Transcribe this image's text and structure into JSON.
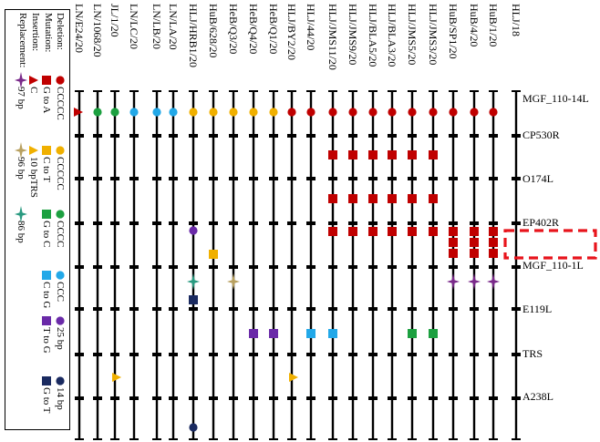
{
  "legend": {
    "titles": [
      "Deletion:",
      "Mutation:",
      "Insertion:",
      "Replacement:"
    ],
    "groups": [
      {
        "deletion": {
          "label": "CCCCC",
          "color": "#c00000"
        },
        "mutation": {
          "label": "G to A",
          "color": "#c00000"
        },
        "insertion": {
          "label": "C",
          "color": "#c00000"
        },
        "replacement": {
          "label": "97 bp",
          "color": "#7a2a8a"
        }
      },
      {
        "deletion": {
          "label": "CCCCC",
          "color": "#f0b000"
        },
        "mutation": {
          "label": "C to T",
          "color": "#f0b000"
        },
        "insertion": {
          "label": "10 bpTRS",
          "color": "#f0b000"
        },
        "replacement": {
          "label": "96 bp",
          "color": "#b8a060"
        }
      },
      {
        "deletion": {
          "label": "CCCC",
          "color": "#1ca040"
        },
        "mutation": {
          "label": "G to C",
          "color": "#1ca040"
        },
        "replacement": {
          "label": "86 bp",
          "color": "#2a9a80"
        }
      },
      {
        "deletion": {
          "label": "CCC",
          "color": "#22a8e8"
        },
        "mutation": {
          "label": "C to G",
          "color": "#22a8e8"
        }
      },
      {
        "deletion": {
          "label": "25 bp",
          "color": "#6a2aa8"
        },
        "mutation": {
          "label": "T to G",
          "color": "#6a2aa8"
        }
      },
      {
        "deletion": {
          "label": "14 bp",
          "color": "#1a2a60"
        },
        "mutation": {
          "label": "G to T",
          "color": "#1a2a60"
        }
      }
    ]
  },
  "strains": [
    "LN/E24/20",
    "LN/1068/20",
    "JL/1/20",
    "LN/LC/20",
    "LN/LB/20",
    "LN/LA/20",
    "HLJ/HRB1/20",
    "HuB/628/20",
    "HeB/Q3/20",
    "HeB/Q4/20",
    "HeB/Q1/20",
    "HLJ/BY2/20",
    "HLJ/44/20",
    "HLJ/JMS11/20",
    "HLJ/JMS9/20",
    "HLJ/BLA5/20",
    "HLJ/BLA3/20",
    "HLJ/JMS5/20",
    "HLJ/JMS3/20",
    "HuB/SP1/20",
    "HuB/4/20",
    "HuB/1/20",
    "HLJ/18"
  ],
  "segments": [
    "MGF_110-14L",
    "CP530R",
    "O174L",
    "EP402R",
    "MGF_110-1L",
    "E119L",
    "TRS",
    "A238L"
  ],
  "highlight": {
    "segment": "EP402R",
    "color": "#e8141c"
  },
  "variations": [
    {
      "strain": "LN/E24/20",
      "segment": "MGF_110-14L",
      "type": "insertion-C"
    },
    {
      "strain": "LN/1068/20",
      "segment": "MGF_110-14L",
      "type": "deletion-CCCC"
    },
    {
      "strain": "JL/1/20",
      "segment": "MGF_110-14L",
      "type": "deletion-CCCC"
    },
    {
      "strain": "LN/LC/20",
      "segment": "MGF_110-14L",
      "type": "deletion-CCC"
    },
    {
      "strain": "LN/LB/20",
      "segment": "MGF_110-14L",
      "type": "deletion-CCC"
    },
    {
      "strain": "LN/LA/20",
      "segment": "MGF_110-14L",
      "type": "deletion-CCC"
    },
    {
      "strain": "HLJ/HRB1/20",
      "segment": "MGF_110-14L",
      "type": "deletion-CCCCC-yellow"
    },
    {
      "strain": "HuB/628/20",
      "segment": "MGF_110-14L",
      "type": "deletion-CCCCC-yellow"
    },
    {
      "strain": "HeB/Q3/20",
      "segment": "MGF_110-14L",
      "type": "deletion-CCCCC-yellow"
    },
    {
      "strain": "HeB/Q4/20",
      "segment": "MGF_110-14L",
      "type": "deletion-CCCCC-yellow"
    },
    {
      "strain": "HeB/Q1/20",
      "segment": "MGF_110-14L",
      "type": "deletion-CCCCC-yellow"
    },
    {
      "strain": "HLJ/BY2/20",
      "segment": "MGF_110-14L",
      "type": "deletion-CCCCC-red"
    },
    {
      "strain": "HLJ/44/20",
      "segment": "MGF_110-14L",
      "type": "deletion-CCCCC-red"
    },
    {
      "strain": "HLJ/JMS11/20",
      "segment": "MGF_110-14L",
      "type": "deletion-CCCCC-red"
    },
    {
      "strain": "HLJ/JMS9/20",
      "segment": "MGF_110-14L",
      "type": "deletion-CCCCC-red"
    },
    {
      "strain": "HLJ/BLA5/20",
      "segment": "MGF_110-14L",
      "type": "deletion-CCCCC-red"
    },
    {
      "strain": "HLJ/BLA3/20",
      "segment": "MGF_110-14L",
      "type": "deletion-CCCCC-red"
    },
    {
      "strain": "HLJ/JMS5/20",
      "segment": "MGF_110-14L",
      "type": "deletion-CCCCC-red"
    },
    {
      "strain": "HLJ/JMS3/20",
      "segment": "MGF_110-14L",
      "type": "deletion-CCCCC-red"
    },
    {
      "strain": "HuB/SP1/20",
      "segment": "MGF_110-14L",
      "type": "deletion-CCCCC-red"
    },
    {
      "strain": "HuB/4/20",
      "segment": "MGF_110-14L",
      "type": "deletion-CCCCC-red"
    },
    {
      "strain": "HuB/1/20",
      "segment": "MGF_110-14L",
      "type": "deletion-CCCCC-red"
    },
    {
      "strain": "HLJ/JMS11/20",
      "segment": "CP530R",
      "type": "mutation-G-to-A"
    },
    {
      "strain": "HLJ/JMS9/20",
      "segment": "CP530R",
      "type": "mutation-G-to-A"
    },
    {
      "strain": "HLJ/BLA5/20",
      "segment": "CP530R",
      "type": "mutation-G-to-A"
    },
    {
      "strain": "HLJ/BLA3/20",
      "segment": "CP530R",
      "type": "mutation-G-to-A"
    },
    {
      "strain": "HLJ/JMS5/20",
      "segment": "CP530R",
      "type": "mutation-G-to-A"
    },
    {
      "strain": "HLJ/JMS3/20",
      "segment": "CP530R",
      "type": "mutation-G-to-A"
    },
    {
      "strain": "HLJ/JMS11/20",
      "segment": "O174L",
      "type": "mutation-G-to-A"
    },
    {
      "strain": "HLJ/JMS9/20",
      "segment": "O174L",
      "type": "mutation-G-to-A"
    },
    {
      "strain": "HLJ/BLA5/20",
      "segment": "O174L",
      "type": "mutation-G-to-A"
    },
    {
      "strain": "HLJ/BLA3/20",
      "segment": "O174L",
      "type": "mutation-G-to-A"
    },
    {
      "strain": "HLJ/JMS5/20",
      "segment": "O174L",
      "type": "mutation-G-to-A"
    },
    {
      "strain": "HLJ/JMS3/20",
      "segment": "O174L",
      "type": "mutation-G-to-A"
    },
    {
      "strain": "HLJ/HRB1/20",
      "segment": "EP402R",
      "type": "deletion-25bp"
    },
    {
      "strain": "HLJ/JMS11/20",
      "segment": "EP402R",
      "type": "mutation-G-to-A"
    },
    {
      "strain": "HLJ/JMS9/20",
      "segment": "EP402R",
      "type": "mutation-G-to-A"
    },
    {
      "strain": "HLJ/BLA5/20",
      "segment": "EP402R",
      "type": "mutation-G-to-A"
    },
    {
      "strain": "HLJ/BLA3/20",
      "segment": "EP402R",
      "type": "mutation-G-to-A"
    },
    {
      "strain": "HLJ/JMS5/20",
      "segment": "EP402R",
      "type": "mutation-G-to-A"
    },
    {
      "strain": "HLJ/JMS3/20",
      "segment": "EP402R",
      "type": "mutation-G-to-A"
    },
    {
      "strain": "HuB/SP1/20",
      "segment": "EP402R",
      "type": "mutation-G-to-A-cluster"
    },
    {
      "strain": "HuB/4/20",
      "segment": "EP402R",
      "type": "mutation-G-to-A-cluster"
    },
    {
      "strain": "HuB/1/20",
      "segment": "EP402R",
      "type": "mutation-G-to-A-cluster"
    },
    {
      "strain": "HuB/628/20",
      "segment": "EP402R",
      "type": "mutation-C-to-T"
    },
    {
      "strain": "HLJ/HRB1/20",
      "segment": "MGF_110-1L",
      "type": "replacement-86bp"
    },
    {
      "strain": "HeB/Q3/20",
      "segment": "MGF_110-1L",
      "type": "replacement-96bp"
    },
    {
      "strain": "HLJ/HRB1/20",
      "segment": "MGF_110-1L",
      "type": "mutation-G-to-T"
    },
    {
      "strain": "HuB/SP1/20",
      "segment": "MGF_110-1L",
      "type": "replacement-97bp"
    },
    {
      "strain": "HuB/4/20",
      "segment": "MGF_110-1L",
      "type": "replacement-97bp"
    },
    {
      "strain": "HuB/1/20",
      "segment": "MGF_110-1L",
      "type": "replacement-97bp"
    },
    {
      "strain": "HeB/Q4/20",
      "segment": "E119L",
      "type": "mutation-T-to-G"
    },
    {
      "strain": "HeB/Q1/20",
      "segment": "E119L",
      "type": "mutation-T-to-G"
    },
    {
      "strain": "HLJ/44/20",
      "segment": "E119L",
      "type": "mutation-C-to-G"
    },
    {
      "strain": "HLJ/JMS11/20",
      "segment": "E119L",
      "type": "mutation-C-to-G"
    },
    {
      "strain": "HLJ/JMS5/20",
      "segment": "E119L",
      "type": "mutation-G-to-C"
    },
    {
      "strain": "HLJ/JMS3/20",
      "segment": "E119L",
      "type": "mutation-G-to-C"
    },
    {
      "strain": "JL/1/20",
      "segment": "TRS",
      "type": "insertion-10bpTRS"
    },
    {
      "strain": "HLJ/BY2/20",
      "segment": "TRS",
      "type": "insertion-10bpTRS"
    },
    {
      "strain": "HLJ/HRB1/20",
      "segment": "A238L",
      "type": "deletion-14bp"
    }
  ]
}
